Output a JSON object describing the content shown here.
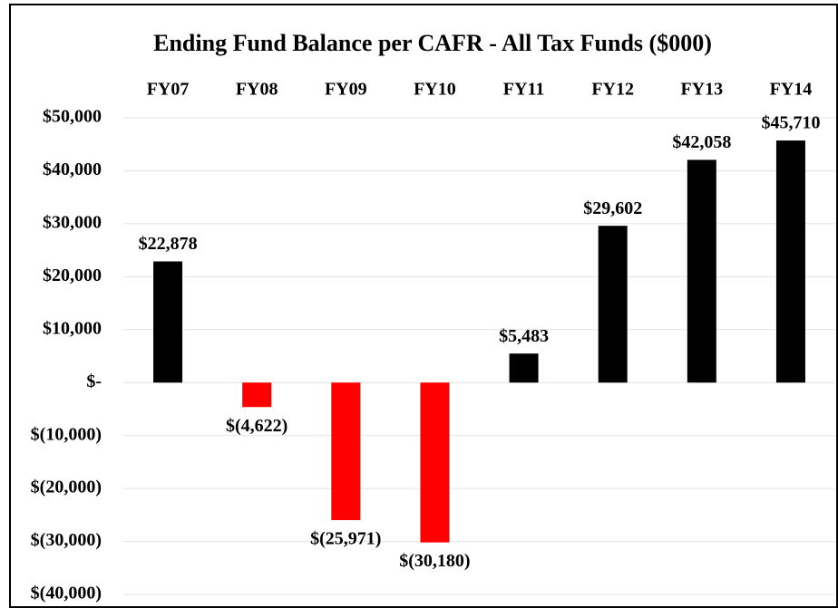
{
  "chart_data": {
    "type": "bar",
    "title": "Ending Fund Balance per CAFR - All Tax Funds ($000)",
    "categories": [
      "FY07",
      "FY08",
      "FY09",
      "FY10",
      "FY11",
      "FY12",
      "FY13",
      "FY14"
    ],
    "values": [
      22878,
      -4622,
      -25971,
      -30180,
      5483,
      29602,
      42058,
      45710
    ],
    "value_labels": [
      "$22,878",
      "$(4,622)",
      "$(25,971)",
      "$(30,180)",
      "$5,483",
      "$29,602",
      "$42,058",
      "$45,710"
    ],
    "colors": [
      "#000000",
      "#ff0000",
      "#ff0000",
      "#ff0000",
      "#000000",
      "#000000",
      "#000000",
      "#000000"
    ],
    "ylim": [
      -40000,
      50000
    ],
    "yticks": [
      {
        "value": 50000,
        "label": "$50,000"
      },
      {
        "value": 40000,
        "label": "$40,000"
      },
      {
        "value": 30000,
        "label": "$30,000"
      },
      {
        "value": 20000,
        "label": "$20,000"
      },
      {
        "value": 10000,
        "label": "$10,000"
      },
      {
        "value": 0,
        "label": "$-"
      },
      {
        "value": -10000,
        "label": "$(10,000)"
      },
      {
        "value": -20000,
        "label": "$(20,000)"
      },
      {
        "value": -30000,
        "label": "$(30,000)"
      },
      {
        "value": -40000,
        "label": "$(40,000)"
      }
    ],
    "grid": true
  }
}
